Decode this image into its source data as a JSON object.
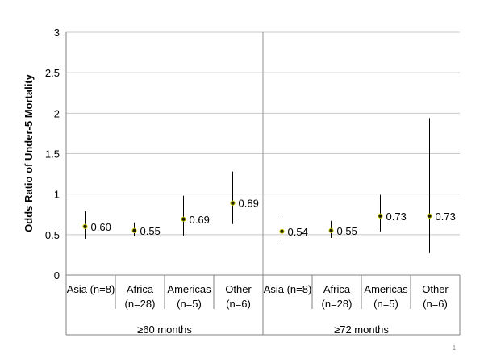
{
  "page_number": "1",
  "chart_data": {
    "type": "scatter",
    "title": "",
    "xlabel": "",
    "ylabel": "Odds Ratio of Under-5 Mortality",
    "ylim": [
      0,
      3
    ],
    "yticks": [
      "0",
      "0.5",
      "1",
      "1.5",
      "2",
      "2.5",
      "3"
    ],
    "grid": true,
    "groups": [
      {
        "label": "≥60 months",
        "categories": [
          {
            "line1": "Asia (n=8)",
            "line2": ""
          },
          {
            "line1": "Africa",
            "line2": "(n=28)"
          },
          {
            "line1": "Americas",
            "line2": "(n=5)"
          },
          {
            "line1": "Other",
            "line2": "(n=6)"
          }
        ],
        "points": [
          {
            "value": 0.6,
            "label": "0.60",
            "ci_low": 0.45,
            "ci_high": 0.79
          },
          {
            "value": 0.55,
            "label": "0.55",
            "ci_low": 0.48,
            "ci_high": 0.65
          },
          {
            "value": 0.69,
            "label": "0.69",
            "ci_low": 0.49,
            "ci_high": 0.98
          },
          {
            "value": 0.89,
            "label": "0.89",
            "ci_low": 0.63,
            "ci_high": 1.28
          }
        ]
      },
      {
        "label": "≥72 months",
        "categories": [
          {
            "line1": "Asia (n=8)",
            "line2": ""
          },
          {
            "line1": "Africa",
            "line2": "(n=28)"
          },
          {
            "line1": "Americas",
            "line2": "(n=5)"
          },
          {
            "line1": "Other",
            "line2": "(n=6)"
          }
        ],
        "points": [
          {
            "value": 0.54,
            "label": "0.54",
            "ci_low": 0.41,
            "ci_high": 0.73
          },
          {
            "value": 0.55,
            "label": "0.55",
            "ci_low": 0.46,
            "ci_high": 0.67
          },
          {
            "value": 0.73,
            "label": "0.73",
            "ci_low": 0.54,
            "ci_high": 0.99
          },
          {
            "value": 0.73,
            "label": "0.73",
            "ci_low": 0.27,
            "ci_high": 1.94
          }
        ]
      }
    ],
    "colors": {
      "marker": "#1a1a00",
      "marker_edge": "#c8c800",
      "errorbar": "#000000",
      "grid": "#c8c8c8",
      "axis": "#808080"
    }
  }
}
